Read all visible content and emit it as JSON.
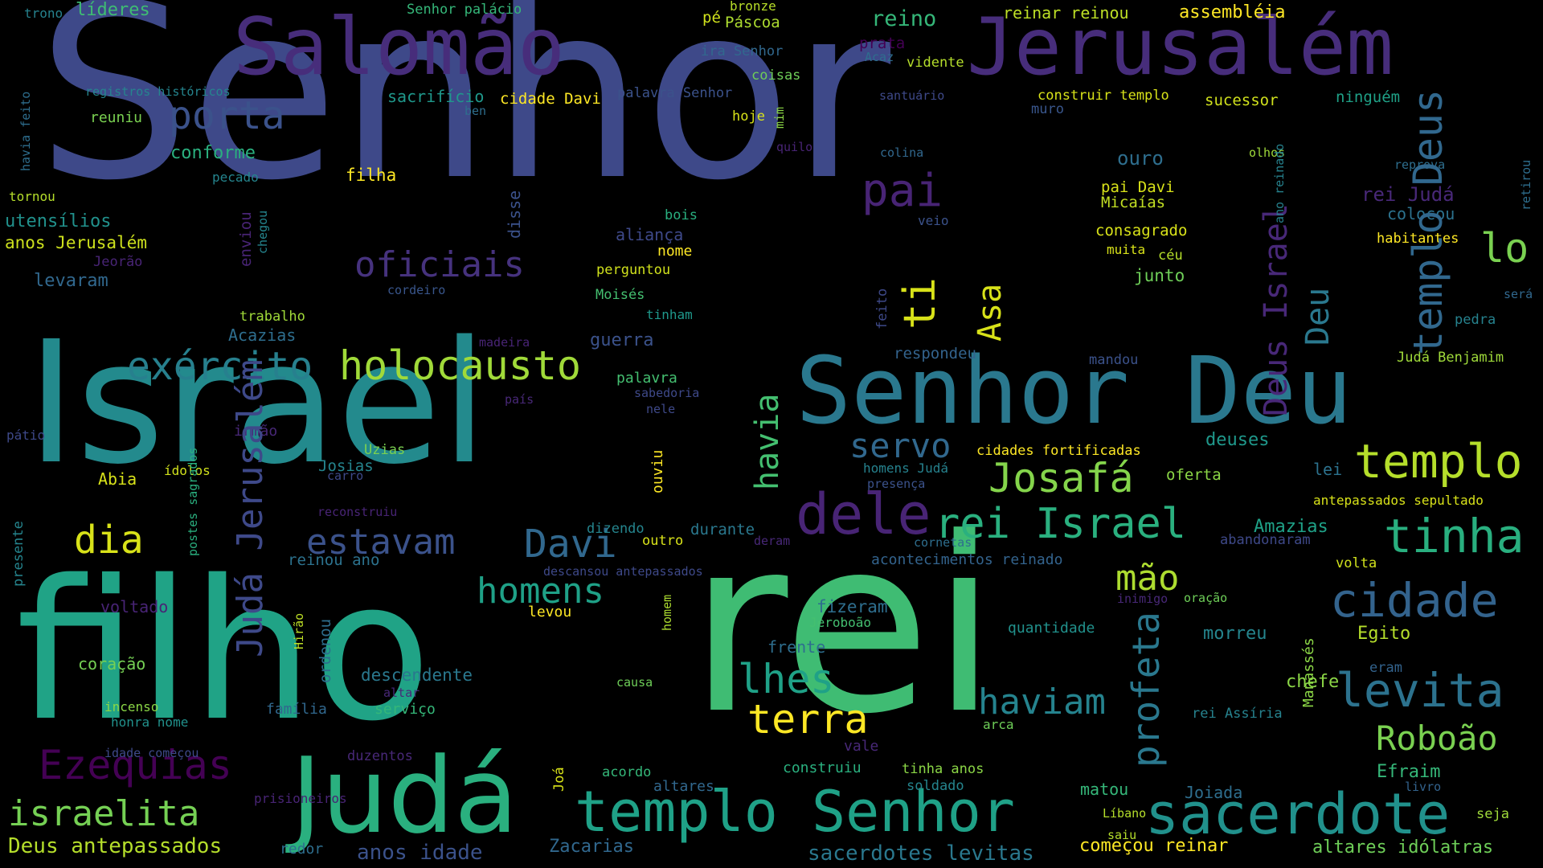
{
  "colors": {
    "background": "#000000",
    "palette": [
      "#440154",
      "#482878",
      "#3e4989",
      "#31688e",
      "#26828e",
      "#1f9e89",
      "#35b779",
      "#6ece58",
      "#b5de2b",
      "#fde725"
    ]
  },
  "words": [
    {
      "text": "Senhor",
      "color": "#3e4989"
    },
    {
      "text": "rei",
      "color": "#3fbc73"
    },
    {
      "text": "Israel",
      "color": "#238a8d"
    },
    {
      "text": "filho",
      "color": "#20a386"
    },
    {
      "text": "Judá",
      "color": "#2ab07f"
    },
    {
      "text": "Jerusalém",
      "color": "#472d7b"
    },
    {
      "text": "Salomão",
      "color": "#472d7b"
    },
    {
      "text": "Senhor Deu",
      "color": "#2a788e"
    },
    {
      "text": "templo Senhor",
      "color": "#1fa187"
    },
    {
      "text": "sacerdote",
      "color": "#21918c"
    },
    {
      "text": "templo",
      "color": "#b5de2b"
    },
    {
      "text": "tinha",
      "color": "#29af7f"
    },
    {
      "text": "cidade",
      "color": "#33638d"
    },
    {
      "text": "levita",
      "color": "#2c728e"
    },
    {
      "text": "dele",
      "color": "#482475"
    },
    {
      "text": "Josafá",
      "color": "#84d44b"
    },
    {
      "text": "rei Israel",
      "color": "#2ab07f"
    },
    {
      "text": "holocausto",
      "color": "#a0da39"
    },
    {
      "text": "exército",
      "color": "#27808e"
    },
    {
      "text": "Davi",
      "color": "#31688e"
    },
    {
      "text": "estavam",
      "color": "#3b528b"
    },
    {
      "text": "homens",
      "color": "#1fa187"
    },
    {
      "text": "israelita",
      "color": "#75d054"
    },
    {
      "text": "Ezequias",
      "color": "#440154"
    },
    {
      "text": "porta",
      "color": "#3b528b"
    },
    {
      "text": "oficiais",
      "color": "#46327e"
    },
    {
      "text": "pai",
      "color": "#482475"
    },
    {
      "text": "terra",
      "color": "#fde725"
    },
    {
      "text": "lhes",
      "color": "#1fa187"
    },
    {
      "text": "haviam",
      "color": "#25838e"
    },
    {
      "text": "Roboão",
      "color": "#7ad151"
    },
    {
      "text": "dia",
      "color": "#d8e219"
    },
    {
      "text": "servo",
      "color": "#31688e"
    },
    {
      "text": "mão",
      "color": "#addc30"
    },
    {
      "text": "lo",
      "color": "#7ad151"
    },
    {
      "text": "Deus antepassados",
      "color": "#b5de2b"
    },
    {
      "text": "anos idade",
      "color": "#3b528b"
    },
    {
      "text": "sacerdotes levitas",
      "color": "#2a788e"
    },
    {
      "text": "começou reinar",
      "color": "#fde725"
    },
    {
      "text": "altares idólatras",
      "color": "#6ece58"
    },
    {
      "text": "assembléia",
      "color": "#fde725"
    },
    {
      "text": "reinar reinou",
      "color": "#bddf26"
    },
    {
      "text": "líderes",
      "color": "#3fbc73"
    },
    {
      "text": "trono",
      "color": "#26828e"
    },
    {
      "text": "Senhor palácio",
      "color": "#35b779"
    },
    {
      "text": "bronze",
      "color": "#b8de29"
    },
    {
      "text": "Páscoa",
      "color": "#addc30"
    },
    {
      "text": "pé",
      "color": "#d0e11c"
    },
    {
      "text": "ira Senhor",
      "color": "#31688e"
    },
    {
      "text": "prata",
      "color": "#440154"
    },
    {
      "text": "Acaz",
      "color": "#2e6e8e"
    },
    {
      "text": "vidente",
      "color": "#b5de2b"
    },
    {
      "text": "reino",
      "color": "#35b779"
    },
    {
      "text": "coisas",
      "color": "#6ece58"
    },
    {
      "text": "registros históricos",
      "color": "#25858e"
    },
    {
      "text": "sacrifício",
      "color": "#1f988b"
    },
    {
      "text": "cidade Davi",
      "color": "#fde725"
    },
    {
      "text": "palavra Senhor",
      "color": "#3b528b"
    },
    {
      "text": "santuário",
      "color": "#3e4989"
    },
    {
      "text": "construir templo",
      "color": "#d8e219"
    },
    {
      "text": "sucessor",
      "color": "#d0e11c"
    },
    {
      "text": "ninguém",
      "color": "#1fa187"
    },
    {
      "text": "reuniu",
      "color": "#7ad151"
    },
    {
      "text": "hoje",
      "color": "#d8e219"
    },
    {
      "text": "ben",
      "color": "#2e6e8e"
    },
    {
      "text": "muro",
      "color": "#39568c"
    },
    {
      "text": "conforme",
      "color": "#2ab07f"
    },
    {
      "text": "quilo",
      "color": "#482475"
    },
    {
      "text": "colina",
      "color": "#31688e"
    },
    {
      "text": "olhos",
      "color": "#9fda3a"
    },
    {
      "text": "reprova",
      "color": "#2e6e8e"
    },
    {
      "text": "filha",
      "color": "#fde725"
    },
    {
      "text": "pecado",
      "color": "#25858e"
    },
    {
      "text": "ouro",
      "color": "#2e6e8e"
    },
    {
      "text": "pai Davi",
      "color": "#d8e219"
    },
    {
      "text": "Micaías",
      "color": "#c2df23"
    },
    {
      "text": "rei Judá",
      "color": "#482878"
    },
    {
      "text": "utensílios",
      "color": "#21918c"
    },
    {
      "text": "tornou",
      "color": "#b5de2b"
    },
    {
      "text": "bois",
      "color": "#29af7f"
    },
    {
      "text": "aliança",
      "color": "#3e4989"
    },
    {
      "text": "nome",
      "color": "#fde725"
    },
    {
      "text": "veio",
      "color": "#3b528b"
    },
    {
      "text": "consagrado",
      "color": "#d8e219"
    },
    {
      "text": "colocou",
      "color": "#2c728e"
    },
    {
      "text": "anos Jerusalém",
      "color": "#cde11d"
    },
    {
      "text": "Jeorão",
      "color": "#482475"
    },
    {
      "text": "levaram",
      "color": "#31688e"
    },
    {
      "text": "perguntou",
      "color": "#d0e11c"
    },
    {
      "text": "muita",
      "color": "#d8e219"
    },
    {
      "text": "céu",
      "color": "#b5de2b"
    },
    {
      "text": "habitantes",
      "color": "#fde725"
    },
    {
      "text": "junto",
      "color": "#6ece58"
    },
    {
      "text": "cordeiro",
      "color": "#39568c"
    },
    {
      "text": "Moisés",
      "color": "#44bf70"
    },
    {
      "text": "tinham",
      "color": "#1f988b"
    },
    {
      "text": "será",
      "color": "#31688e"
    },
    {
      "text": "pedra",
      "color": "#26828e"
    },
    {
      "text": "trabalho",
      "color": "#a0da39"
    },
    {
      "text": "Acazias",
      "color": "#2e6e8e"
    },
    {
      "text": "madeira",
      "color": "#482475"
    },
    {
      "text": "guerra",
      "color": "#3b528b"
    },
    {
      "text": "respondeu",
      "color": "#33638d"
    },
    {
      "text": "mandou",
      "color": "#3b528b"
    },
    {
      "text": "Judá Benjamim",
      "color": "#9fda3a"
    },
    {
      "text": "palavra",
      "color": "#44bf70"
    },
    {
      "text": "sabedoria",
      "color": "#3e4989"
    },
    {
      "text": "nele",
      "color": "#3e4989"
    },
    {
      "text": "país",
      "color": "#482878"
    },
    {
      "text": "irmão",
      "color": "#482878"
    },
    {
      "text": "pátio",
      "color": "#3e4989"
    },
    {
      "text": "deuses",
      "color": "#1f988b"
    },
    {
      "text": "ídolos",
      "color": "#d0e11c"
    },
    {
      "text": "Uzias",
      "color": "#7ad151"
    },
    {
      "text": "Josias",
      "color": "#25858e"
    },
    {
      "text": "carro",
      "color": "#3e4989"
    },
    {
      "text": "Abia",
      "color": "#d8e219"
    },
    {
      "text": "cidades fortificadas",
      "color": "#fde725"
    },
    {
      "text": "homens Judá",
      "color": "#26828e"
    },
    {
      "text": "presença",
      "color": "#3b528b"
    },
    {
      "text": "oferta",
      "color": "#8bd646"
    },
    {
      "text": "lei",
      "color": "#2c728e"
    },
    {
      "text": "antepassados sepultado",
      "color": "#d8e219"
    },
    {
      "text": "reconstruiu",
      "color": "#482475"
    },
    {
      "text": "Amazias",
      "color": "#1fa187"
    },
    {
      "text": "dizendo",
      "color": "#25858e"
    },
    {
      "text": "durante",
      "color": "#2a788e"
    },
    {
      "text": "outro",
      "color": "#d8e219"
    },
    {
      "text": "deram",
      "color": "#482878"
    },
    {
      "text": "cornetas",
      "color": "#2e6e8e"
    },
    {
      "text": "abandonaram",
      "color": "#3e4989"
    },
    {
      "text": "reinou ano",
      "color": "#2c728e"
    },
    {
      "text": "acontecimentos reinado",
      "color": "#33638d"
    },
    {
      "text": "volta",
      "color": "#d0e11c"
    },
    {
      "text": "descansou antepassados",
      "color": "#3e4989"
    },
    {
      "text": "inimigo",
      "color": "#482878"
    },
    {
      "text": "oração",
      "color": "#6ece58"
    },
    {
      "text": "voltado",
      "color": "#482475"
    },
    {
      "text": "levou",
      "color": "#fde725"
    },
    {
      "text": "fizeram",
      "color": "#2e6e8e"
    },
    {
      "text": "Jeroboão",
      "color": "#44bf70"
    },
    {
      "text": "quantidade",
      "color": "#21918c"
    },
    {
      "text": "morreu",
      "color": "#25858e"
    },
    {
      "text": "Egito",
      "color": "#b5de2b"
    },
    {
      "text": "coração",
      "color": "#75d054"
    },
    {
      "text": "frente",
      "color": "#2e6e8e"
    },
    {
      "text": "descendente",
      "color": "#2a788e"
    },
    {
      "text": "altar",
      "color": "#482878"
    },
    {
      "text": "chefe",
      "color": "#8bd646"
    },
    {
      "text": "eram",
      "color": "#33638d"
    },
    {
      "text": "incenso",
      "color": "#8bd646"
    },
    {
      "text": "honra nome",
      "color": "#21918c"
    },
    {
      "text": "família",
      "color": "#31688e"
    },
    {
      "text": "serviço",
      "color": "#35b779"
    },
    {
      "text": "arca",
      "color": "#6ece58"
    },
    {
      "text": "rei Assíria",
      "color": "#26828e"
    },
    {
      "text": "causa",
      "color": "#6ece58"
    },
    {
      "text": "vale",
      "color": "#482878"
    },
    {
      "text": "idade começou",
      "color": "#3e4989"
    },
    {
      "text": "duzentos",
      "color": "#482878"
    },
    {
      "text": "construiu",
      "color": "#2ab07f"
    },
    {
      "text": "tinha anos",
      "color": "#8bd646"
    },
    {
      "text": "Efraim",
      "color": "#35b779"
    },
    {
      "text": "acordo",
      "color": "#35b779"
    },
    {
      "text": "altares",
      "color": "#31688e"
    },
    {
      "text": "soldado",
      "color": "#25858e"
    },
    {
      "text": "matou",
      "color": "#35b779"
    },
    {
      "text": "Joiada",
      "color": "#2e6e8e"
    },
    {
      "text": "livro",
      "color": "#33638d"
    },
    {
      "text": "prisioneiros",
      "color": "#482475"
    },
    {
      "text": "Líbano",
      "color": "#b5de2b"
    },
    {
      "text": "seja",
      "color": "#9fda3a"
    },
    {
      "text": "saiu",
      "color": "#b5de2b"
    },
    {
      "text": "redor",
      "color": "#2e6e8e"
    },
    {
      "text": "Zacarias",
      "color": "#31688e"
    },
    {
      "text": "ti",
      "color": "#d8e219"
    },
    {
      "text": "Asa",
      "color": "#d8e219"
    },
    {
      "text": "templo Deus",
      "color": "#31688e"
    },
    {
      "text": "Deu",
      "color": "#2a788e"
    },
    {
      "text": "Deus Israel",
      "color": "#482878"
    },
    {
      "text": "profeta",
      "color": "#2a788e"
    },
    {
      "text": "havia",
      "color": "#44bf70"
    },
    {
      "text": "Judá Jerusalém",
      "color": "#3e4989"
    },
    {
      "text": "disse",
      "color": "#3b528b"
    },
    {
      "text": "enviou",
      "color": "#482475"
    },
    {
      "text": "chegou",
      "color": "#25858e"
    },
    {
      "text": "mim",
      "color": "#8bd646"
    },
    {
      "text": "feito",
      "color": "#3e4989"
    },
    {
      "text": "havia feito",
      "color": "#2e6e8e"
    },
    {
      "text": "presente",
      "color": "#25858e"
    },
    {
      "text": "postes sagrados",
      "color": "#2ab07f"
    },
    {
      "text": "ouviu",
      "color": "#fde725"
    },
    {
      "text": "homem",
      "color": "#addc30"
    },
    {
      "text": "Hirão",
      "color": "#bddf26"
    },
    {
      "text": "ordenou",
      "color": "#2e6e8e"
    },
    {
      "text": "Joá",
      "color": "#d8e219"
    },
    {
      "text": "Manassés",
      "color": "#8bd646"
    },
    {
      "text": "ano reinado",
      "color": "#26828e"
    },
    {
      "text": "retirou",
      "color": "#2e6e8e"
    },
    {
      "text": "palácio",
      "color": "#26828e"
    }
  ]
}
